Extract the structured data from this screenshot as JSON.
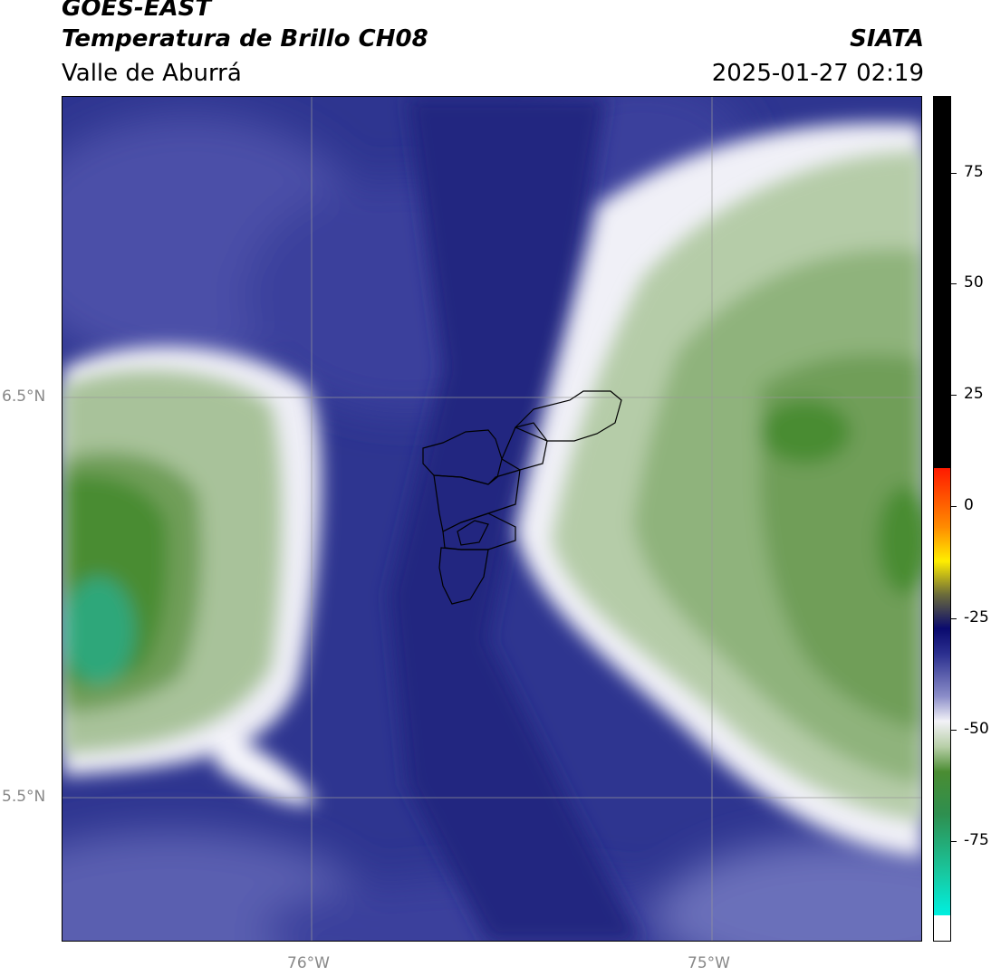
{
  "header": {
    "satellite": "GOES-EAST",
    "product": "Temperatura de Brillo CH08",
    "region": "Valle de Aburrá",
    "brand": "SIATA",
    "timestamp": "2025-01-27 02:19"
  },
  "map": {
    "lat_labels": [
      "6.5°N",
      "5.5°N"
    ],
    "lon_labels": [
      "76°W",
      "75°W"
    ]
  },
  "colorbar": {
    "tick_labels": [
      "75",
      "50",
      "25",
      "0",
      "-25",
      "-50",
      "-75"
    ],
    "colors": {
      "black": "#000000",
      "red": "#ff1a00",
      "orange": "#ff8c00",
      "yellow": "#ffee00",
      "dark_navy": "#0a0a6e",
      "blue": "#2b2f8f",
      "pale": "#f2f2f7",
      "green": "#4a8c32",
      "teal": "#18c8a0",
      "cyan": "#00f0e0",
      "white": "#ffffff"
    }
  }
}
